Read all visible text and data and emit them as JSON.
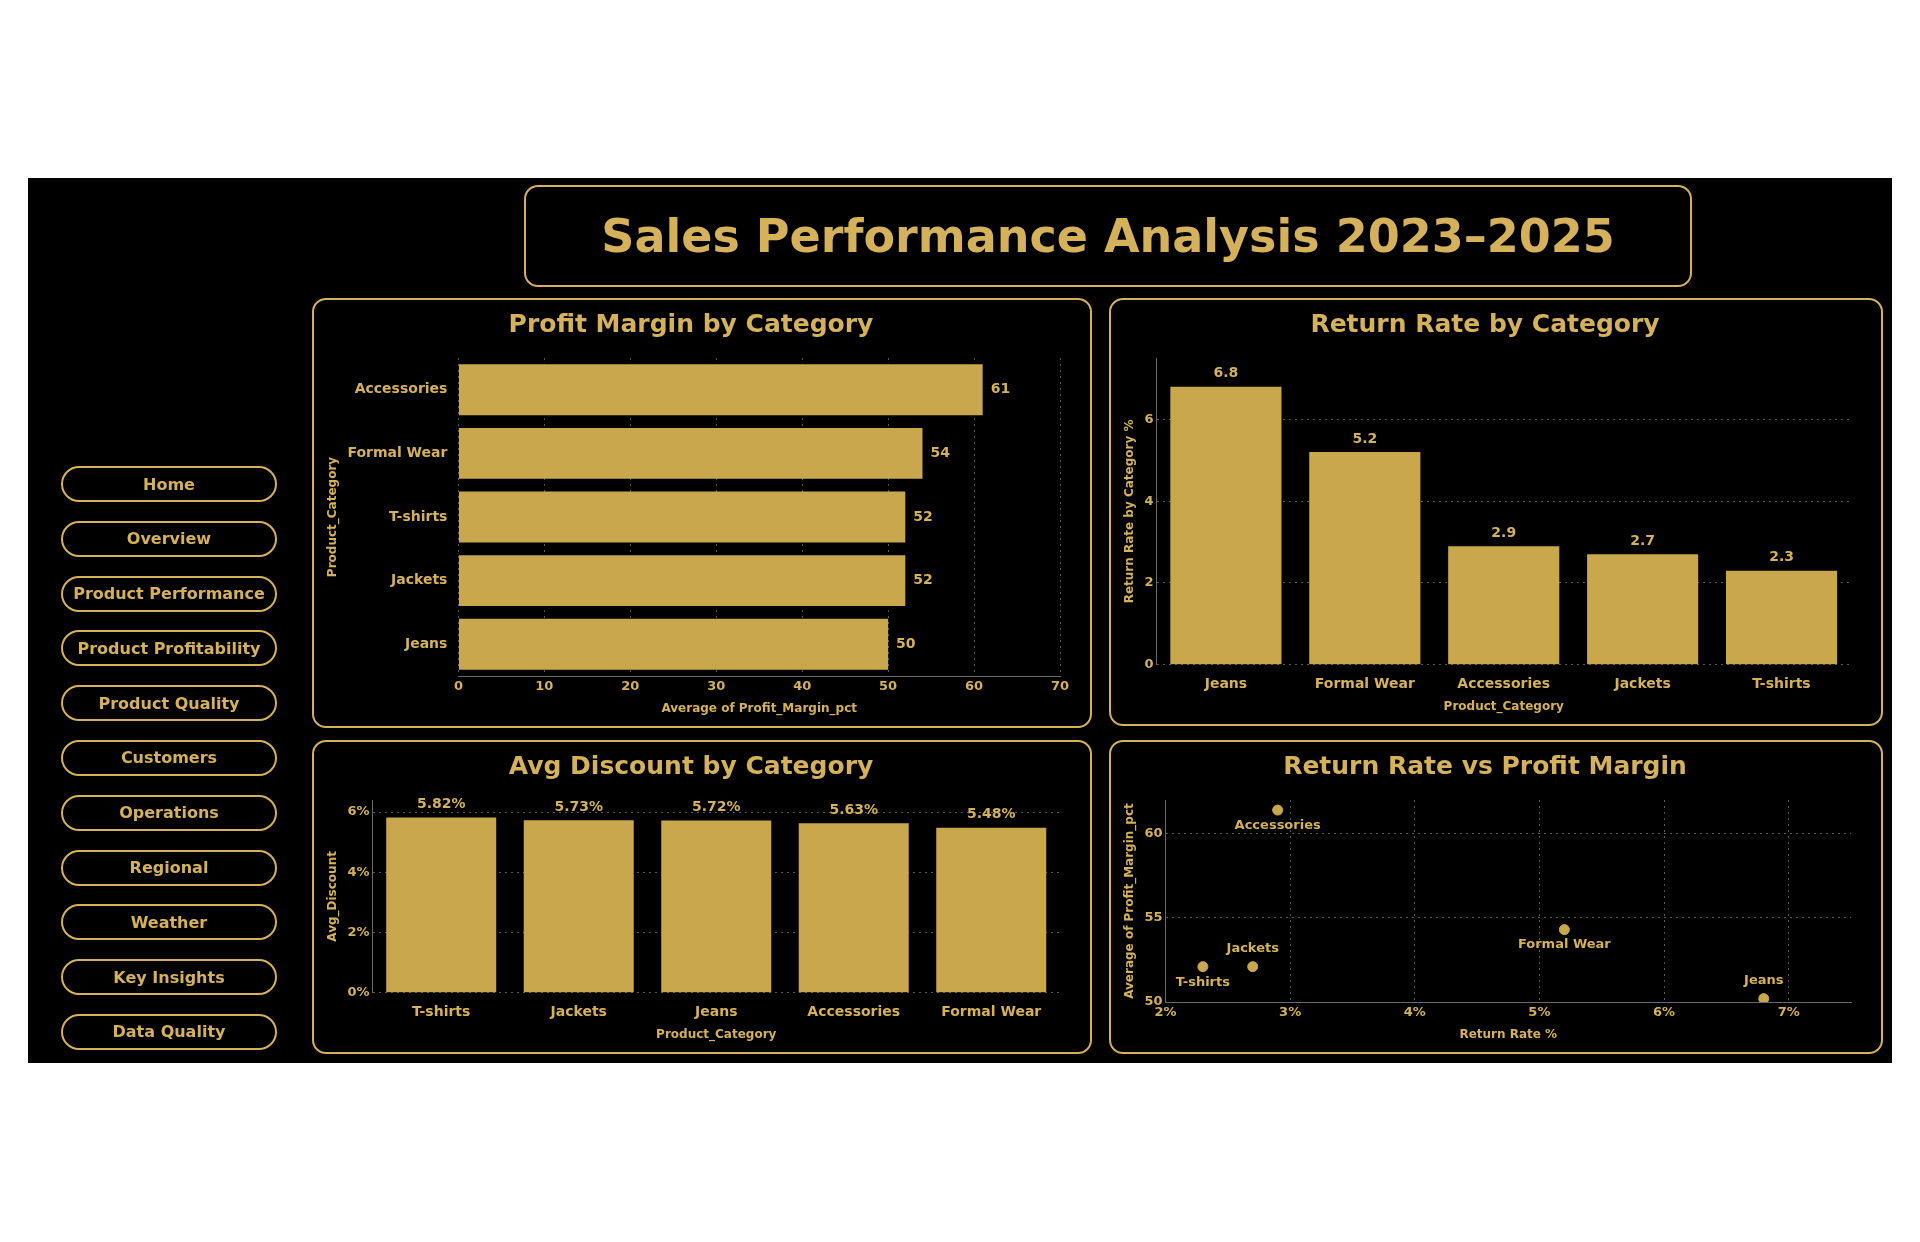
{
  "chart_data": [
    {
      "type": "other",
      "title": "Sales Performance Analysis 2023–2025",
      "annotations": [
        "Home",
        "Overview",
        "Product Performance",
        "Product Profitability",
        "Product Quality",
        "Customers",
        "Operations",
        "Regional",
        "Weather",
        "Key Insights",
        "Data Quality"
      ]
    },
    {
      "type": "bar",
      "orientation": "horizontal",
      "title": "Profit Margin by Category",
      "categories": [
        "Accessories",
        "Formal Wear",
        "T-shirts",
        "Jackets",
        "Jeans"
      ],
      "values": [
        61,
        54,
        52,
        52,
        50
      ],
      "color": "#c9a74d",
      "xlim": [
        0,
        70
      ],
      "xticks": [
        0,
        10,
        20,
        30,
        40,
        50,
        60,
        70
      ],
      "xlabel": "Average of Profit_Margin_pct",
      "ylabel": "Product_Category",
      "grid": "x",
      "data_labels": true
    },
    {
      "type": "bar",
      "title": "Return Rate by Category",
      "categories": [
        "Jeans",
        "Formal Wear",
        "Accessories",
        "Jackets",
        "T-shirts"
      ],
      "values": [
        6.8,
        5.2,
        2.9,
        2.7,
        2.3
      ],
      "color": "#c9a74d",
      "ylim": [
        0,
        7.5
      ],
      "yticks": [
        0,
        2,
        4,
        6
      ],
      "xlabel": "Product_Category",
      "ylabel": "Return Rate by Category %",
      "grid": "y",
      "data_labels": true
    },
    {
      "type": "bar",
      "title": "Avg Discount by Category",
      "categories": [
        "T-shirts",
        "Jackets",
        "Jeans",
        "Accessories",
        "Formal Wear"
      ],
      "values": [
        5.82,
        5.73,
        5.72,
        5.63,
        5.48
      ],
      "value_labels": [
        "5.82%",
        "5.73%",
        "5.72%",
        "5.63%",
        "5.48%"
      ],
      "color": "#c9a74d",
      "ylim": [
        0,
        6.4
      ],
      "yticks": [
        {
          "value": 0,
          "label": "0%"
        },
        {
          "value": 2,
          "label": "2%"
        },
        {
          "value": 4,
          "label": "4%"
        },
        {
          "value": 6,
          "label": "6%"
        }
      ],
      "xlabel": "Product_Category",
      "ylabel": "Avg_Discount",
      "grid": "y"
    },
    {
      "type": "scatter",
      "title": "Return Rate vs Profit Margin",
      "x": [
        2.9,
        5.2,
        2.3,
        2.7,
        6.8
      ],
      "values": [
        61.4,
        54.3,
        52.1,
        52.1,
        50.2
      ],
      "color": "#c9a74d",
      "marker": "circle",
      "xlim": [
        2,
        7.5
      ],
      "xticks": [
        {
          "value": 2,
          "label": "2%"
        },
        {
          "value": 3,
          "label": "3%"
        },
        {
          "value": 4,
          "label": "4%"
        },
        {
          "value": 5,
          "label": "5%"
        },
        {
          "value": 6,
          "label": "6%"
        },
        {
          "value": 7,
          "label": "7%"
        }
      ],
      "ylim": [
        50,
        62
      ],
      "yticks": [
        50,
        55,
        60
      ],
      "xlabel": "Return Rate %",
      "ylabel": "Average of Profit_Margin_pct",
      "grid": true,
      "annotations": [
        {
          "text": "Accessories",
          "x": 2.9,
          "y": 61.4
        },
        {
          "text": "Formal Wear",
          "x": 5.2,
          "y": 54.3
        },
        {
          "text": "T-shirts",
          "x": 2.3,
          "y": 52.1
        },
        {
          "text": "Jackets",
          "x": 2.7,
          "y": 52.1
        },
        {
          "text": "Jeans",
          "x": 6.8,
          "y": 50.2
        }
      ]
    }
  ]
}
